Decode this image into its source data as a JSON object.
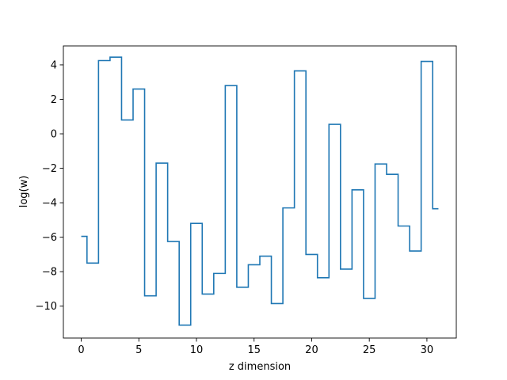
{
  "chart_data": {
    "type": "line",
    "drawstyle": "steps-mid",
    "title": "",
    "xlabel": "z dimension",
    "ylabel": "log(w)",
    "xlim": [
      -1.55,
      32.55
    ],
    "ylim": [
      -11.85,
      5.1
    ],
    "xticks": [
      0,
      5,
      10,
      15,
      20,
      25,
      30
    ],
    "yticks": [
      -10,
      -8,
      -6,
      -4,
      -2,
      0,
      2,
      4
    ],
    "grid": false,
    "legend": null,
    "series": [
      {
        "color": "#1f77b4",
        "x": [
          0,
          1,
          2,
          3,
          4,
          5,
          6,
          7,
          8,
          9,
          10,
          11,
          12,
          13,
          14,
          15,
          16,
          17,
          18,
          19,
          20,
          21,
          22,
          23,
          24,
          25,
          26,
          27,
          28,
          29,
          30,
          31
        ],
        "y": [
          -5.95,
          -7.5,
          4.25,
          4.45,
          0.8,
          2.6,
          -9.4,
          -1.7,
          -6.25,
          -11.1,
          -5.2,
          -9.3,
          -8.1,
          2.8,
          -8.9,
          -7.6,
          -7.1,
          -9.85,
          -4.3,
          3.65,
          -7.0,
          -8.35,
          0.55,
          -7.85,
          -3.25,
          -9.55,
          -1.75,
          -2.35,
          -5.35,
          -6.8,
          4.2,
          -4.35
        ]
      }
    ]
  }
}
